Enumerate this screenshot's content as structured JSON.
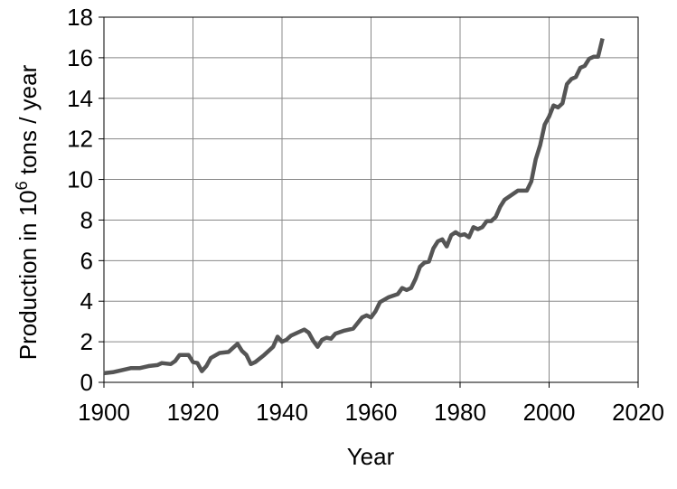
{
  "chart_data": {
    "type": "line",
    "xlabel": "Year",
    "ylabel": [
      "Production in 10",
      "6",
      " tons / year"
    ],
    "x": [
      1900,
      1902,
      1904,
      1906,
      1908,
      1910,
      1912,
      1913,
      1915,
      1916,
      1917,
      1919,
      1920,
      1921,
      1922,
      1923,
      1924,
      1926,
      1928,
      1930,
      1931,
      1932,
      1933,
      1934,
      1936,
      1938,
      1939,
      1940,
      1941,
      1942,
      1944,
      1945,
      1946,
      1947,
      1948,
      1949,
      1950,
      1951,
      1952,
      1954,
      1956,
      1958,
      1959,
      1960,
      1961,
      1962,
      1964,
      1966,
      1967,
      1968,
      1969,
      1970,
      1971,
      1972,
      1973,
      1974,
      1975,
      1976,
      1977,
      1978,
      1979,
      1980,
      1981,
      1982,
      1983,
      1984,
      1985,
      1986,
      1987,
      1988,
      1989,
      1990,
      1991,
      1992,
      1993,
      1995,
      1996,
      1997,
      1998,
      1999,
      2000,
      2001,
      2002,
      2003,
      2004,
      2005,
      2006,
      2007,
      2008,
      2009,
      2010,
      2011,
      2012
    ],
    "series": [
      {
        "color": "#555555",
        "values": [
          0.45,
          0.5,
          0.6,
          0.7,
          0.7,
          0.8,
          0.85,
          0.95,
          0.9,
          1.05,
          1.35,
          1.35,
          1.0,
          0.95,
          0.55,
          0.8,
          1.2,
          1.45,
          1.5,
          1.9,
          1.55,
          1.35,
          0.9,
          1.0,
          1.35,
          1.75,
          2.25,
          2.0,
          2.1,
          2.3,
          2.5,
          2.6,
          2.45,
          2.05,
          1.75,
          2.1,
          2.2,
          2.15,
          2.4,
          2.55,
          2.65,
          3.2,
          3.3,
          3.2,
          3.5,
          3.95,
          4.2,
          4.35,
          4.65,
          4.55,
          4.65,
          5.1,
          5.7,
          5.9,
          5.95,
          6.6,
          6.95,
          7.05,
          6.7,
          7.25,
          7.4,
          7.25,
          7.3,
          7.15,
          7.65,
          7.55,
          7.65,
          7.95,
          7.95,
          8.15,
          8.65,
          9.0,
          9.15,
          9.3,
          9.45,
          9.45,
          9.9,
          11.0,
          11.7,
          12.7,
          13.1,
          13.65,
          13.55,
          13.75,
          14.7,
          14.95,
          15.05,
          15.5,
          15.6,
          15.95,
          16.05,
          16.05,
          16.95
        ]
      }
    ],
    "xlim": [
      1900,
      2020
    ],
    "xticks": [
      1900,
      1920,
      1940,
      1960,
      1980,
      2000,
      2020
    ],
    "ylim": [
      0,
      18
    ],
    "yticks": [
      0,
      2,
      4,
      6,
      8,
      10,
      12,
      14,
      16,
      18
    ],
    "grid": true
  }
}
